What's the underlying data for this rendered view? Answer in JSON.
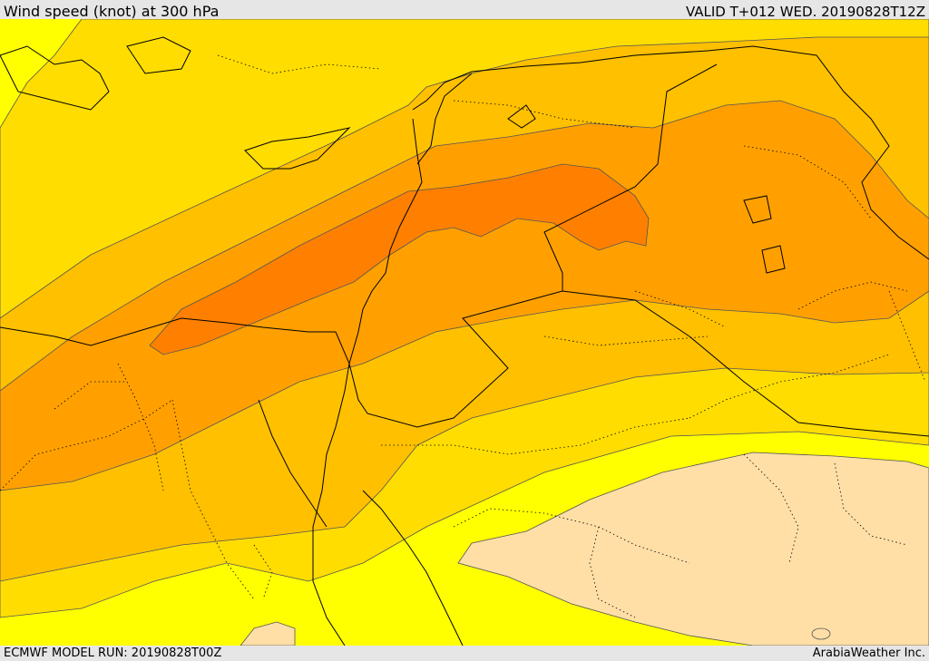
{
  "header": {
    "title": "Wind speed (knot) at 300 hPa",
    "valid": "VALID T+012 WED. 20190828T12Z"
  },
  "footer": {
    "model_run": "ECMWF MODEL RUN: 20190828T00Z",
    "brand": "ArabiaWeather Inc."
  },
  "map": {
    "colors": {
      "band_calm": "#ffdfa6",
      "band_1": "#ffff00",
      "band_2": "#ffdd00",
      "band_3": "#ffc000",
      "band_4": "#ffa000",
      "band_5": "#ff8000",
      "contour": "#555555",
      "border": "#000000"
    }
  }
}
